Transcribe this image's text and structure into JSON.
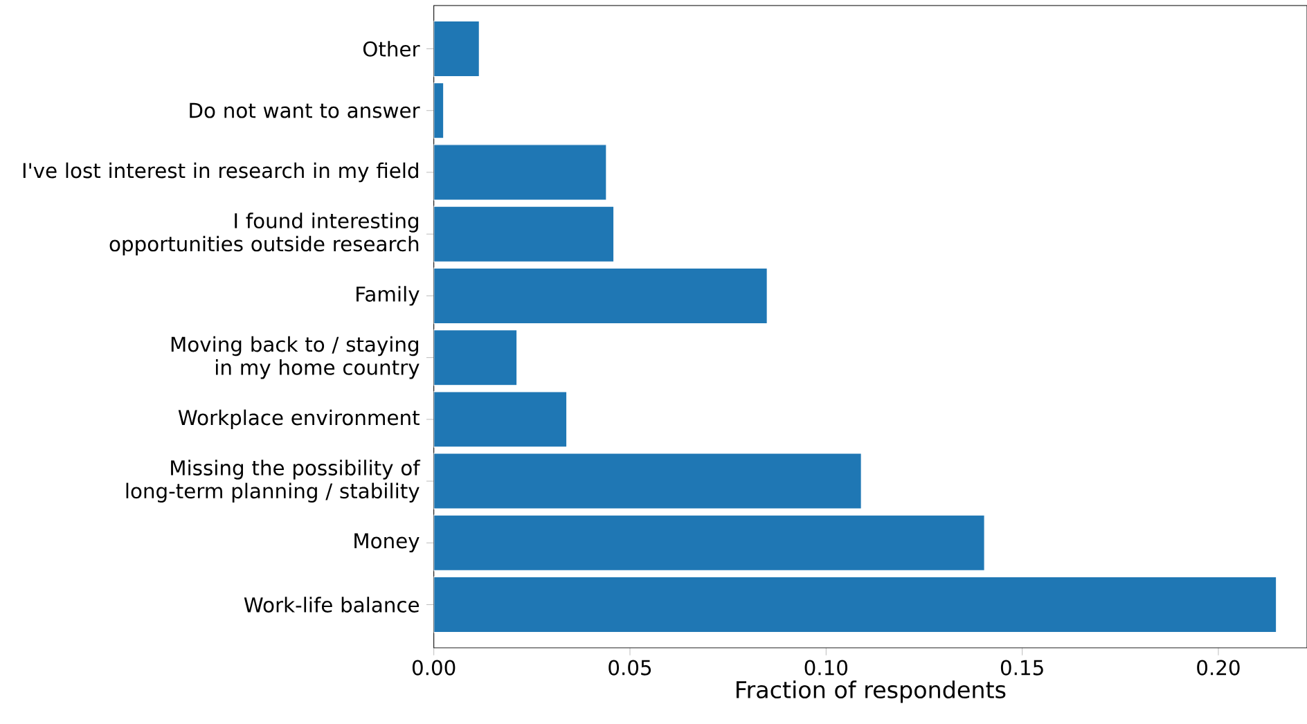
{
  "chart_data": {
    "type": "bar",
    "orientation": "horizontal",
    "xlabel": "Fraction of respondents",
    "categories": [
      "Other",
      "Do not want to answer",
      "I've lost interest in research in my field",
      "I found interesting opportunities outside research",
      "Family",
      "Moving back to / staying in my home country",
      "Workplace environment",
      "Missing the possibility of long-term planning / stability",
      "Money",
      "Work-life balance"
    ],
    "values": [
      0.0116,
      0.0025,
      0.044,
      0.0459,
      0.085,
      0.0212,
      0.0339,
      0.109,
      0.1404,
      0.2148
    ],
    "color": "#1f77b4",
    "xlim": [
      0,
      0.2226
    ],
    "xticks": [
      {
        "value": 0,
        "label": "0.00"
      },
      {
        "value": 0.05,
        "label": "0.05"
      },
      {
        "value": 0.1,
        "label": "0.10"
      },
      {
        "value": 0.15,
        "label": "0.15"
      },
      {
        "value": 0.2,
        "label": "0.20"
      }
    ],
    "grid": false
  }
}
